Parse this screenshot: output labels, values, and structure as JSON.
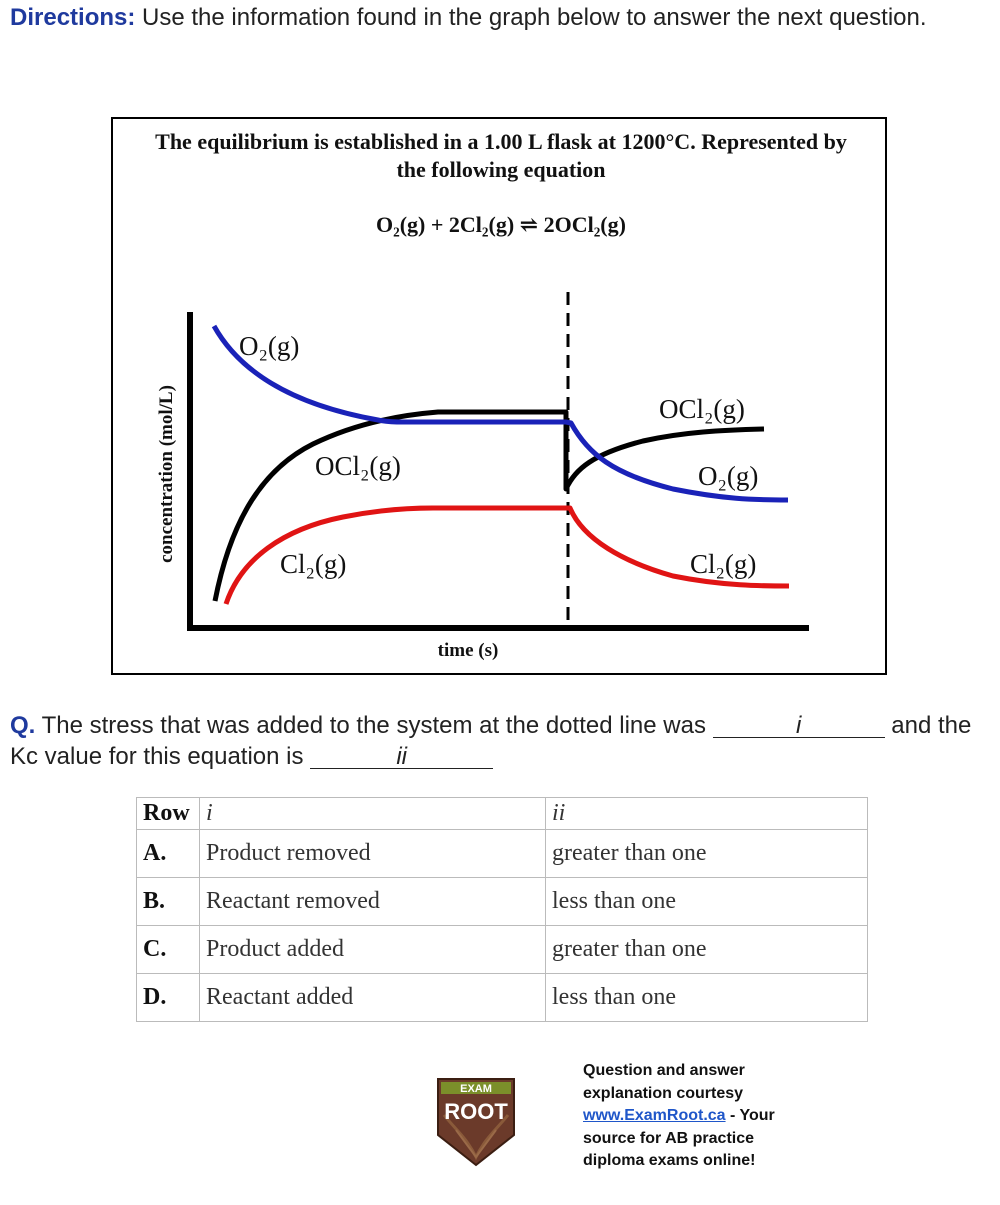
{
  "directions": {
    "label": "Directions:",
    "text": "Use the information found in the graph below to answer the next question."
  },
  "graph": {
    "title_line1": "The equilibrium is established in a 1.00 L flask at 1200°C. Represented by",
    "title_line2": "the following equation",
    "equation": "O₂(g) + 2Cl₂(g) ⇌ 2OCl₂(g)",
    "colors": {
      "o2": "#1a22b8",
      "ocl2": "#000000",
      "cl2": "#e01414"
    }
  },
  "chart_data": {
    "type": "line",
    "title": "The equilibrium is established in a 1.00 L flask at 1200°C. Represented by the following equation",
    "xlabel": "time (s)",
    "ylabel": "concentration (mol/L)",
    "annotations": [
      "dashed vertical line marks the stress applied to the system"
    ],
    "series": [
      {
        "name": "O2(g)",
        "label_before": "O₂(g)",
        "label_after": "O₂(g)",
        "trend": "decreases to equilibrium, then decreases further after the stress"
      },
      {
        "name": "OCl2(g)",
        "label_before": "OCl₂(g)",
        "label_after": "OCl₂(g)",
        "trend": "increases to equilibrium, drops suddenly at the stress, then increases"
      },
      {
        "name": "Cl2(g)",
        "label_before": "Cl₂(g)",
        "label_after": "Cl₂(g)",
        "trend": "increases to equilibrium, then decreases after the stress"
      }
    ]
  },
  "question": {
    "label": "Q.",
    "text_part1": "The stress that was added to the system at the dotted line was",
    "blank1": "i",
    "text_part2": "and the Kc value for this equation is",
    "blank2": "ii"
  },
  "table": {
    "headers": [
      "Row",
      "i",
      "ii"
    ],
    "rows": [
      {
        "row": "A.",
        "i": "Product removed",
        "ii": "greater than one"
      },
      {
        "row": "B.",
        "i": "Reactant removed",
        "ii": "less than one"
      },
      {
        "row": "C.",
        "i": "Product added",
        "ii": "greater than one"
      },
      {
        "row": "D.",
        "i": "Reactant added",
        "ii": "less than one"
      }
    ]
  },
  "logo": {
    "top": "EXAM",
    "bottom": "ROOT"
  },
  "courtesy": {
    "line1": "Question and answer explanation courtesy",
    "link": "www.ExamRoot.ca",
    "line2": "- Your source for AB practice diploma exams online!"
  }
}
